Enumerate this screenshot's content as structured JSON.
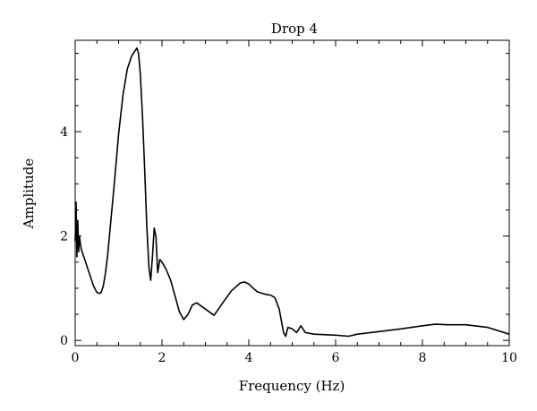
{
  "chart_data": {
    "type": "line",
    "title": "Drop 4",
    "xlabel": "Frequency (Hz)",
    "ylabel": "Amplitude",
    "xlim": [
      0,
      10
    ],
    "ylim": [
      -0.1,
      5.75
    ],
    "x_ticks": [
      0,
      2,
      4,
      6,
      8,
      10
    ],
    "x_tick_labels": [
      "0",
      "2",
      "4",
      "6",
      "8",
      "10"
    ],
    "y_ticks": [
      0,
      2,
      4
    ],
    "y_tick_labels": [
      "0",
      "2",
      "4"
    ],
    "grid": false,
    "legend": "none",
    "line_color": "#000000",
    "series": [
      {
        "x": [
          0.0,
          0.02,
          0.04,
          0.06,
          0.08,
          0.1,
          0.12,
          0.14,
          0.18,
          0.22,
          0.26,
          0.3,
          0.34,
          0.38,
          0.42,
          0.46,
          0.5,
          0.55,
          0.6,
          0.65,
          0.7,
          0.75,
          0.8,
          0.9,
          1.0,
          1.1,
          1.2,
          1.3,
          1.38,
          1.42,
          1.46,
          1.5,
          1.55,
          1.6,
          1.65,
          1.7,
          1.74,
          1.78,
          1.82,
          1.86,
          1.9,
          1.95,
          2.0,
          2.1,
          2.2,
          2.3,
          2.4,
          2.5,
          2.6,
          2.7,
          2.8,
          3.0,
          3.2,
          3.4,
          3.6,
          3.8,
          3.9,
          4.0,
          4.1,
          4.2,
          4.4,
          4.5,
          4.6,
          4.7,
          4.8,
          4.85,
          4.9,
          5.0,
          5.1,
          5.2,
          5.3,
          5.5,
          6.0,
          6.3,
          6.5,
          7.0,
          7.5,
          8.0,
          8.3,
          8.6,
          9.0,
          9.5,
          10.0
        ],
        "y": [
          1.9,
          2.65,
          1.6,
          2.3,
          1.7,
          2.0,
          1.85,
          1.75,
          1.65,
          1.55,
          1.45,
          1.35,
          1.25,
          1.15,
          1.05,
          0.98,
          0.92,
          0.9,
          0.92,
          1.05,
          1.3,
          1.65,
          2.1,
          3.0,
          3.95,
          4.7,
          5.2,
          5.45,
          5.55,
          5.6,
          5.5,
          5.1,
          4.3,
          3.3,
          2.2,
          1.4,
          1.15,
          1.6,
          2.15,
          2.0,
          1.3,
          1.55,
          1.5,
          1.35,
          1.15,
          0.85,
          0.55,
          0.4,
          0.5,
          0.68,
          0.72,
          0.6,
          0.48,
          0.72,
          0.95,
          1.1,
          1.12,
          1.08,
          1.0,
          0.93,
          0.88,
          0.87,
          0.82,
          0.6,
          0.15,
          0.08,
          0.25,
          0.22,
          0.15,
          0.28,
          0.15,
          0.12,
          0.1,
          0.08,
          0.12,
          0.17,
          0.22,
          0.28,
          0.31,
          0.3,
          0.3,
          0.25,
          0.12
        ]
      }
    ]
  }
}
